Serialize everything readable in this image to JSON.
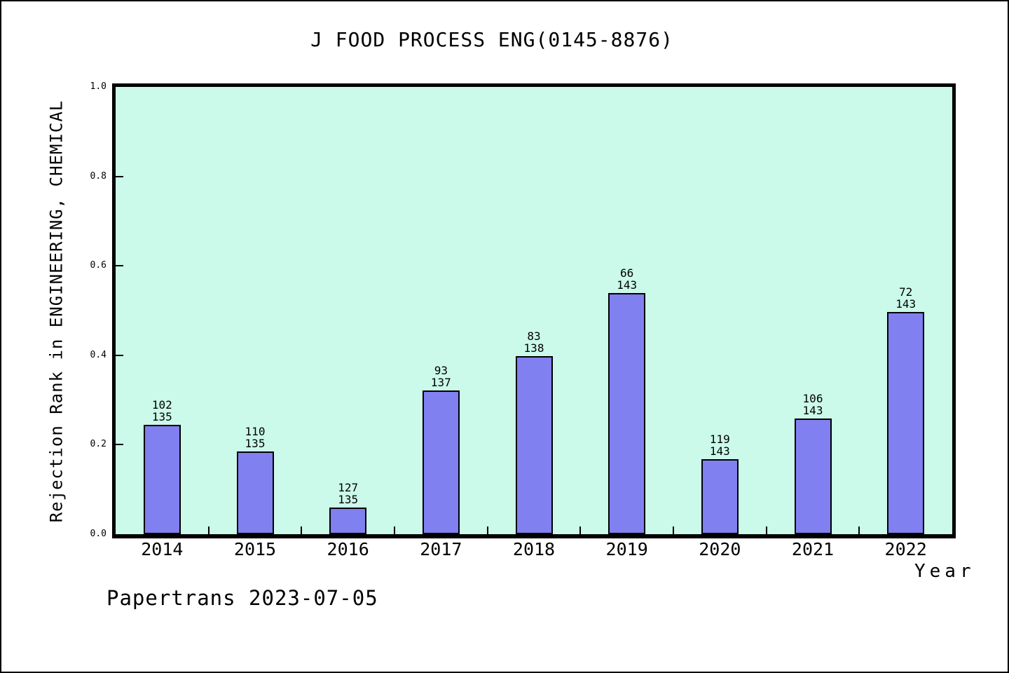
{
  "watermark": "Papertrans 2023-07-05",
  "chart_data": {
    "type": "bar",
    "title": "J FOOD PROCESS ENG(0145-8876)",
    "xlabel": "Year",
    "ylabel": "Rejection Rank in ENGINEERING, CHEMICAL",
    "ylim": [
      0.0,
      1.0
    ],
    "ytick_labels": [
      "0.0",
      "0.2",
      "0.4",
      "0.6",
      "0.8",
      "1.0"
    ],
    "ytick_values": [
      0.0,
      0.2,
      0.4,
      0.6,
      0.8,
      1.0
    ],
    "grid": false,
    "legend": false,
    "plot_bg_color": "#CBF9EA",
    "bar_color": "#8080F0",
    "bar_border_color": "#000000",
    "categories": [
      "2014",
      "2015",
      "2016",
      "2017",
      "2018",
      "2019",
      "2020",
      "2021",
      "2022"
    ],
    "bars": [
      {
        "year": "2014",
        "rank": 102,
        "total": 135,
        "height": 0.2444
      },
      {
        "year": "2015",
        "rank": 110,
        "total": 135,
        "height": 0.1852
      },
      {
        "year": "2016",
        "rank": 127,
        "total": 135,
        "height": 0.0593
      },
      {
        "year": "2017",
        "rank": 93,
        "total": 137,
        "height": 0.3212
      },
      {
        "year": "2018",
        "rank": 83,
        "total": 138,
        "height": 0.3986
      },
      {
        "year": "2019",
        "rank": 66,
        "total": 143,
        "height": 0.5385
      },
      {
        "year": "2020",
        "rank": 119,
        "total": 143,
        "height": 0.1678
      },
      {
        "year": "2021",
        "rank": 106,
        "total": 143,
        "height": 0.2587
      },
      {
        "year": "2022",
        "rank": 72,
        "total": 143,
        "height": 0.4965
      }
    ]
  }
}
